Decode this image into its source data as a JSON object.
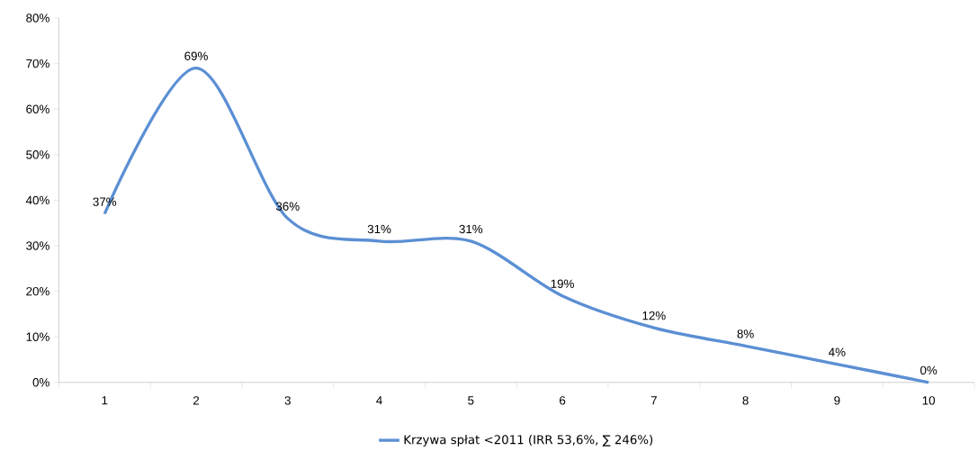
{
  "chart_data": {
    "type": "line",
    "categories": [
      "1",
      "2",
      "3",
      "4",
      "5",
      "6",
      "7",
      "8",
      "9",
      "10"
    ],
    "series": [
      {
        "name": "Krzywa spłat <2011 (IRR 53,6%, ∑ 246%)",
        "color": "#5b8fd4",
        "values": [
          37,
          69,
          36,
          31,
          31,
          19,
          12,
          8,
          4,
          0
        ],
        "value_labels": [
          "37%",
          "69%",
          "36%",
          "31%",
          "31%",
          "19%",
          "12%",
          "8%",
          "4%",
          "0%"
        ]
      }
    ],
    "ylim": [
      0,
      80
    ],
    "yticks": [
      {
        "value": 0,
        "label": "0%"
      },
      {
        "value": 10,
        "label": "10%"
      },
      {
        "value": 20,
        "label": "20%"
      },
      {
        "value": 30,
        "label": "30%"
      },
      {
        "value": 40,
        "label": "40%"
      },
      {
        "value": 50,
        "label": "50%"
      },
      {
        "value": 60,
        "label": "60%"
      },
      {
        "value": 70,
        "label": "70%"
      },
      {
        "value": 80,
        "label": "80%"
      }
    ],
    "legend": "bottom",
    "marker": "none",
    "line_style": "solid"
  }
}
